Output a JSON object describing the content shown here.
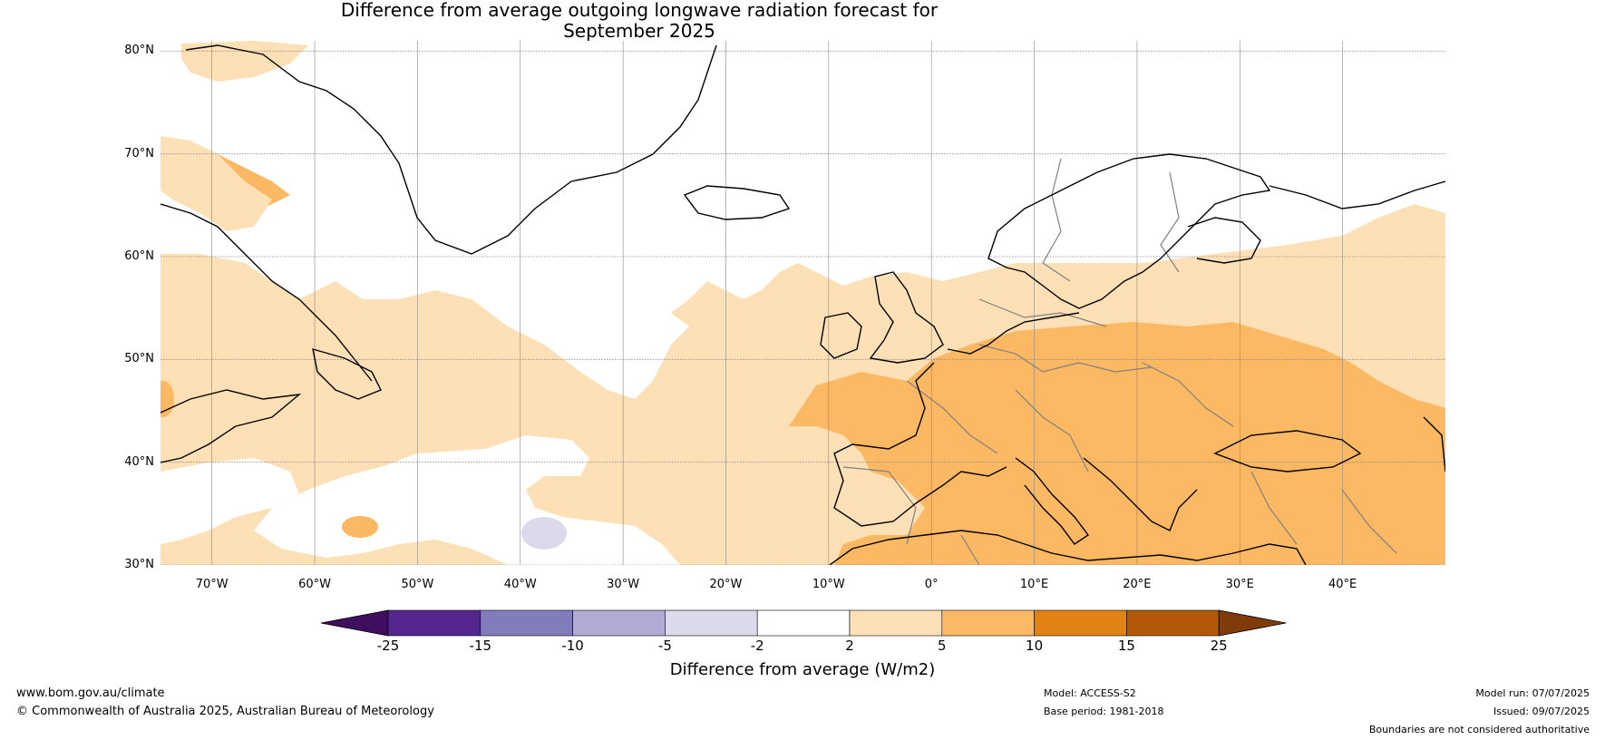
{
  "title": {
    "line1": "Difference from average outgoing longwave radiation forecast for",
    "line2": "September 2025"
  },
  "map": {
    "latitudes": [
      "80°N",
      "70°N",
      "60°N",
      "50°N",
      "40°N",
      "30°N"
    ],
    "longitudes": [
      "70°W",
      "60°W",
      "50°W",
      "40°W",
      "30°W",
      "20°W",
      "10°W",
      "0°",
      "10°E",
      "20°E",
      "30°E",
      "40°E"
    ],
    "extent": {
      "lon": [
        -75,
        50
      ],
      "lat": [
        30,
        81
      ]
    },
    "coastline_color": "#000000",
    "border_color": "#808080",
    "grid_color": "#888888"
  },
  "colorbar": {
    "ticks": [
      "-25",
      "-15",
      "-10",
      "-5",
      "-2",
      "2",
      "5",
      "10",
      "15",
      "25"
    ],
    "colors": [
      "#3f0e5e",
      "#54278f",
      "#807dba",
      "#b1aad4",
      "#dadaeb",
      "#ffffff",
      "#fee0b6",
      "#fdb863",
      "#e08214",
      "#b35806",
      "#7f3b08"
    ],
    "label": "Difference from average (W/m2)"
  },
  "footer": {
    "website": "www.bom.gov.au/climate",
    "copyright": "© Commonwealth of Australia 2025, Australian Bureau of Meteorology",
    "model": "Model: ACCESS-S2",
    "base_period": "Base period: 1981-2018",
    "model_run": "Model run: 07/07/2025",
    "issued": "Issued: 09/07/2025",
    "disclaimer": "Boundaries are not considered authoritative"
  }
}
